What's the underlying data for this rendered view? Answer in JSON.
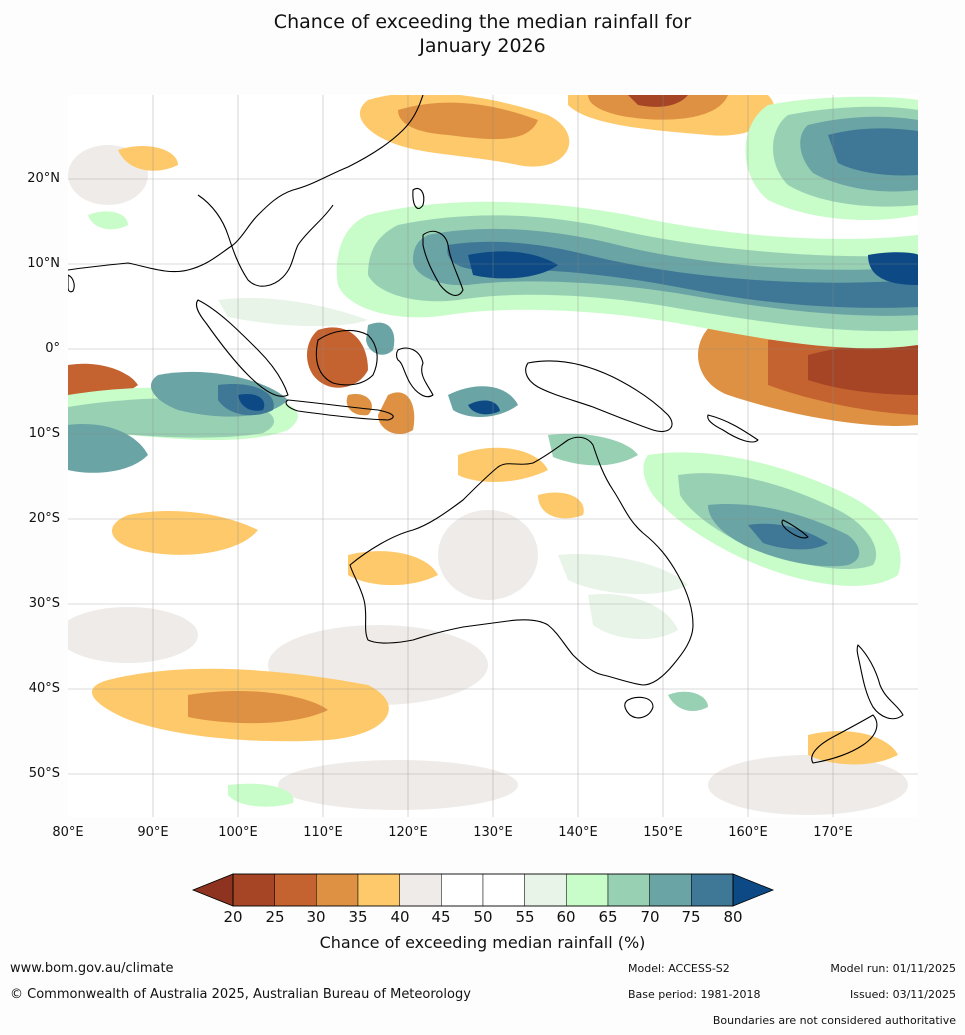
{
  "title_line1": "Chance of exceeding the median rainfall for",
  "title_line2": "January 2026",
  "lat_labels": [
    "20°N",
    "10°N",
    "0°",
    "10°S",
    "20°S",
    "30°S",
    "40°S",
    "50°S"
  ],
  "lon_labels": [
    "80°E",
    "90°E",
    "100°E",
    "110°E",
    "120°E",
    "130°E",
    "140°E",
    "150°E",
    "160°E",
    "170°E"
  ],
  "colorbar": {
    "ticks": [
      "20",
      "25",
      "30",
      "35",
      "40",
      "45",
      "50",
      "55",
      "60",
      "65",
      "70",
      "75",
      "80"
    ],
    "under_color": "#8e3320",
    "over_color": "#0d4a85",
    "bin_colors": [
      "#a64526",
      "#c4632f",
      "#de9142",
      "#fec96a",
      "#efebe8",
      "#ffffff",
      "#ffffff",
      "#e8f4e8",
      "#c8fcc8",
      "#98d0b4",
      "#6aa4a4",
      "#3e7896"
    ],
    "title": "Chance of exceeding median rainfall (%)"
  },
  "footer": {
    "website": "www.bom.gov.au/climate",
    "copyright": "© Commonwealth of Australia 2025, Australian Bureau of Meteorology",
    "model": "Model: ACCESS-S2",
    "base_period": "Base period: 1981-2018",
    "model_run": "Model run: 01/11/2025",
    "issued": "Issued: 03/11/2025",
    "disclaimer": "Boundaries are not considered authoritative"
  }
}
